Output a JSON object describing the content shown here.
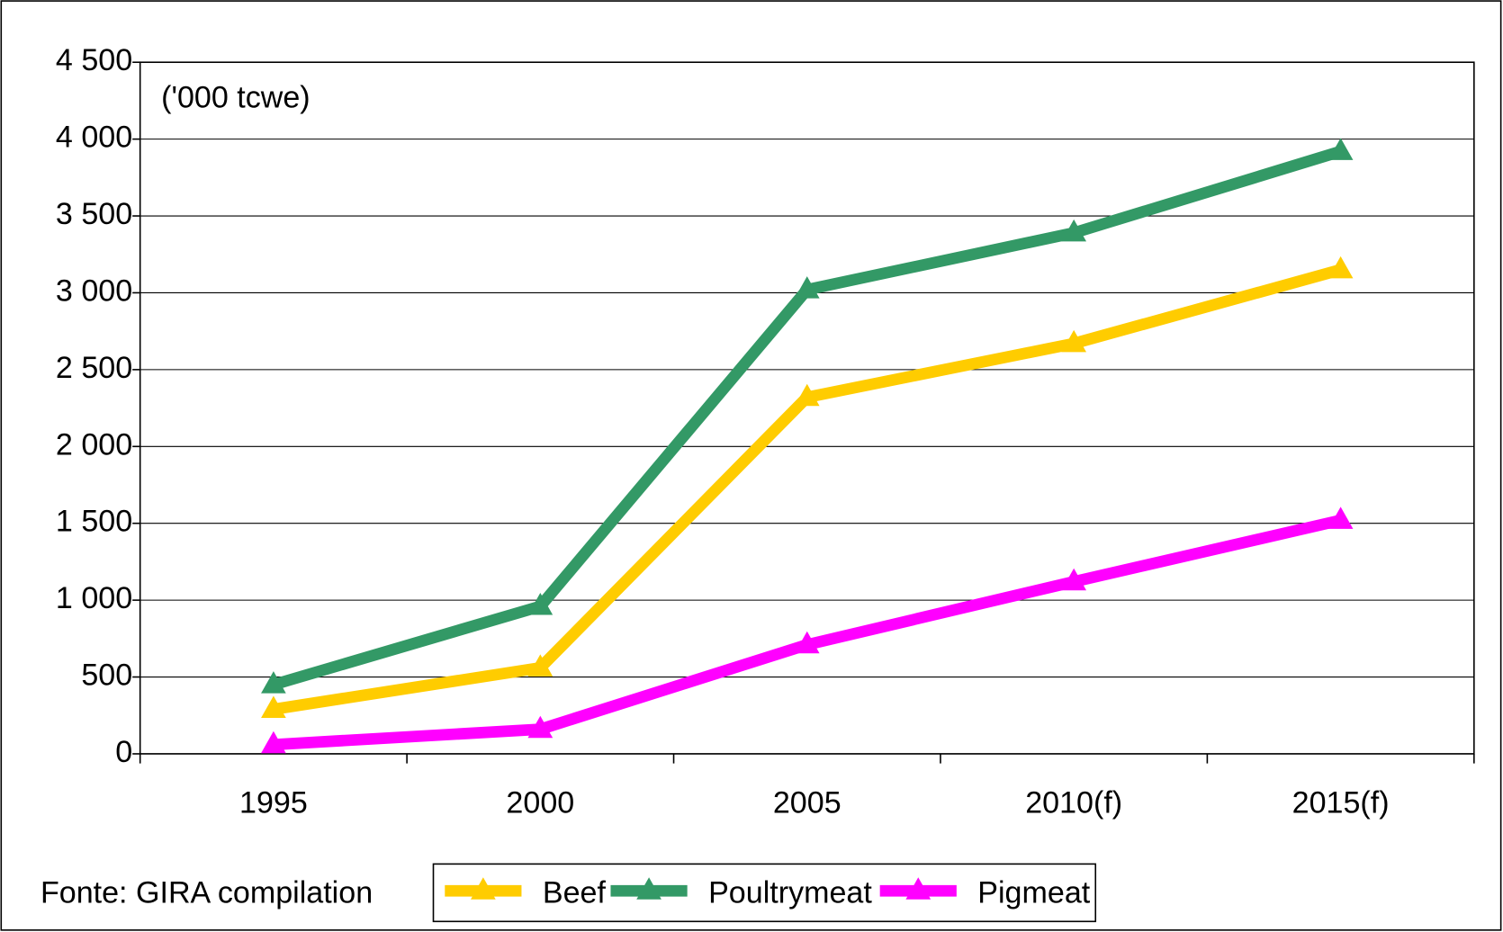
{
  "chart_data": {
    "type": "line",
    "annotations": [
      "('000 tcwe)",
      "Fonte: GIRA compilation"
    ],
    "categories": [
      "1995",
      "2000",
      "2005",
      "2010(f)",
      "2015(f)"
    ],
    "series": [
      {
        "name": "Beef",
        "color": "#ffcc00",
        "values": [
          290,
          560,
          2320,
          2670,
          3150
        ]
      },
      {
        "name": "Poultrymeat",
        "color": "#339966",
        "values": [
          450,
          960,
          3020,
          3390,
          3920
        ]
      },
      {
        "name": "Pigmeat",
        "color": "#ff00ff",
        "values": [
          60,
          160,
          710,
          1120,
          1520
        ]
      }
    ],
    "ylim": [
      0,
      4500
    ],
    "yticks": [
      0,
      500,
      {
        "value": 1000,
        "label": "1 000"
      },
      {
        "value": 1500,
        "label": "1 500"
      },
      {
        "value": 2000,
        "label": "2 000"
      },
      {
        "value": 2500,
        "label": "2 500"
      },
      {
        "value": 3000,
        "label": "3 000"
      },
      {
        "value": 3500,
        "label": "3 500"
      },
      {
        "value": 4000,
        "label": "4 000"
      },
      {
        "value": 4500,
        "label": "4 500"
      }
    ],
    "grid": true
  }
}
